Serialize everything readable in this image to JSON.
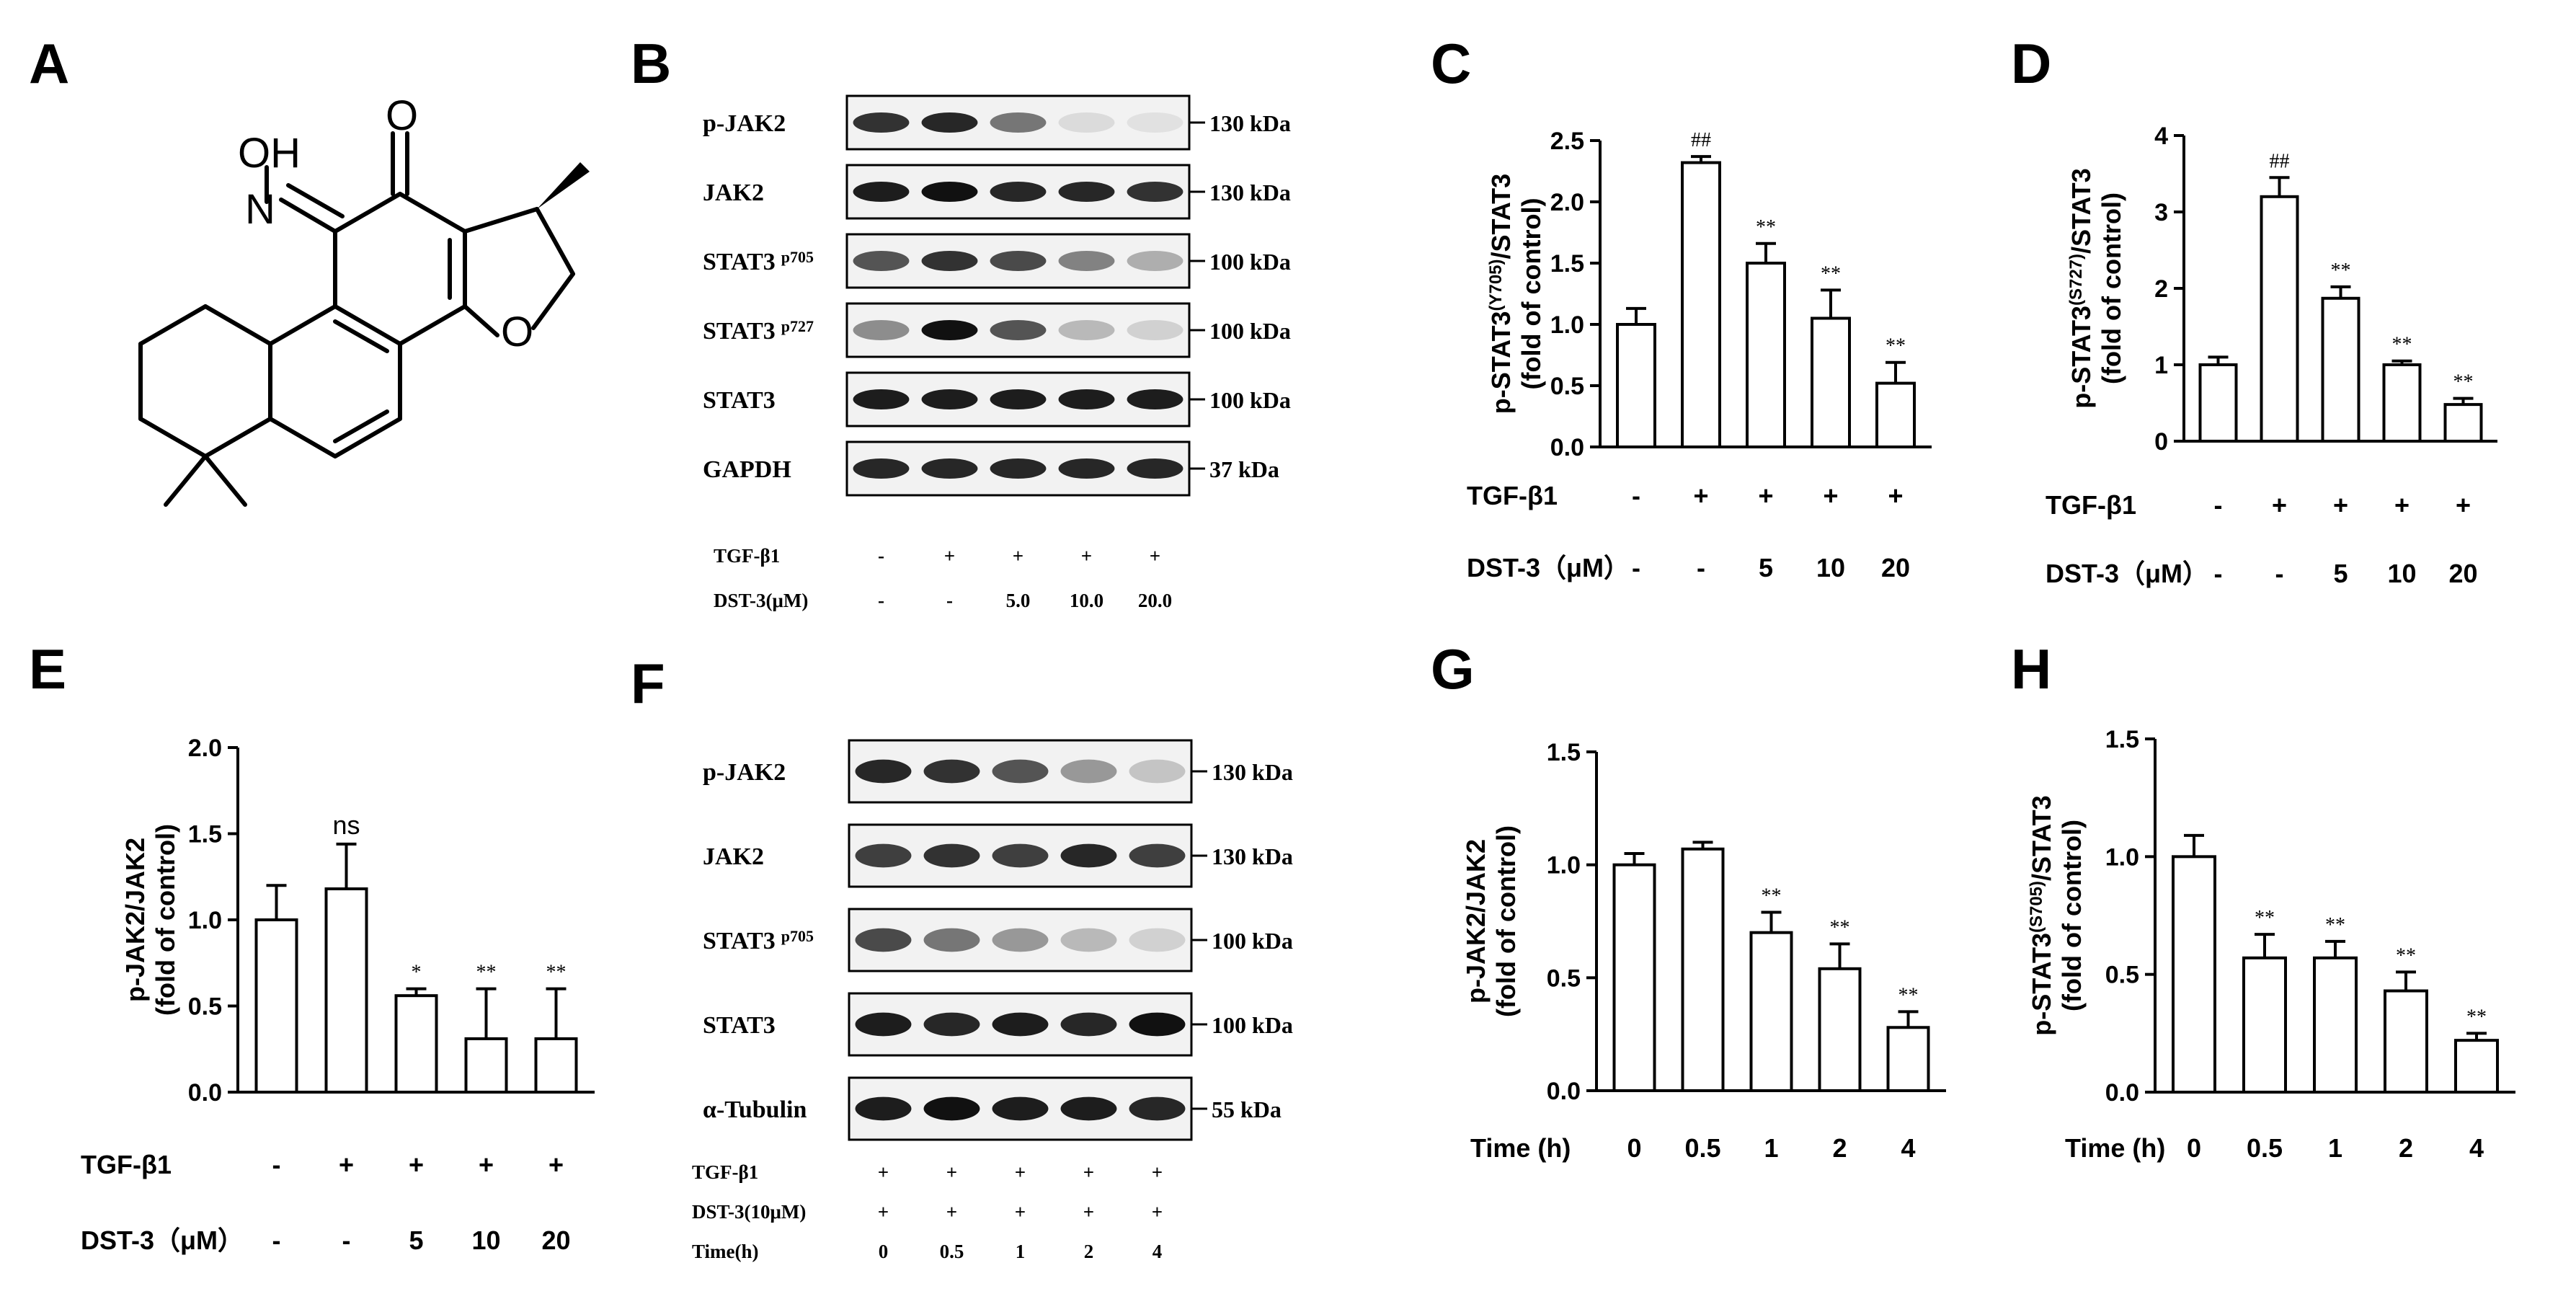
{
  "panel_letters": [
    "A",
    "B",
    "C",
    "D",
    "E",
    "F",
    "G",
    "H"
  ],
  "molecule": {
    "atoms": [
      "OH",
      "N",
      "O",
      "O"
    ]
  },
  "blots": [
    {
      "id": "B",
      "rows": [
        {
          "label": "p-JAK2",
          "sup": "",
          "kda": "130 kDa",
          "intensity": [
            0.85,
            0.9,
            0.55,
            0.1,
            0.07
          ]
        },
        {
          "label": "JAK2",
          "sup": "",
          "kda": "130 kDa",
          "intensity": [
            0.95,
            1.0,
            0.9,
            0.9,
            0.85
          ]
        },
        {
          "label": "STAT3",
          "sup": "p705",
          "kda": "100 kDa",
          "intensity": [
            0.7,
            0.85,
            0.75,
            0.5,
            0.3
          ]
        },
        {
          "label": "STAT3",
          "sup": "p727",
          "kda": "100 kDa",
          "intensity": [
            0.45,
            1.0,
            0.7,
            0.25,
            0.15
          ]
        },
        {
          "label": "STAT3",
          "sup": "",
          "kda": "100 kDa",
          "intensity": [
            0.95,
            0.95,
            0.95,
            0.95,
            0.95
          ]
        },
        {
          "label": "GAPDH",
          "sup": "",
          "kda": "37 kDa",
          "intensity": [
            0.9,
            0.9,
            0.9,
            0.9,
            0.9
          ]
        }
      ],
      "conditions": [
        {
          "label": "TGF-β1",
          "values": [
            "-",
            "+",
            "+",
            "+",
            "+"
          ]
        },
        {
          "label": "DST-3(μM)",
          "values": [
            "-",
            "-",
            "5.0",
            "10.0",
            "20.0"
          ]
        }
      ]
    },
    {
      "id": "F",
      "rows": [
        {
          "label": "p-JAK2",
          "sup": "",
          "kda": "130 kDa",
          "intensity": [
            0.9,
            0.85,
            0.7,
            0.4,
            0.2
          ]
        },
        {
          "label": "JAK2",
          "sup": "",
          "kda": "130 kDa",
          "intensity": [
            0.8,
            0.85,
            0.8,
            0.9,
            0.8
          ]
        },
        {
          "label": "STAT3",
          "sup": "p705",
          "kda": "100 kDa",
          "intensity": [
            0.75,
            0.55,
            0.4,
            0.25,
            0.15
          ]
        },
        {
          "label": "STAT3",
          "sup": "",
          "kda": "100 kDa",
          "intensity": [
            0.95,
            0.9,
            0.95,
            0.9,
            1.0
          ]
        },
        {
          "label": "α-Tubulin",
          "sup": "",
          "kda": "55 kDa",
          "intensity": [
            0.95,
            1.0,
            0.95,
            0.95,
            0.9
          ]
        }
      ],
      "conditions": [
        {
          "label": "TGF-β1",
          "values": [
            "+",
            "+",
            "+",
            "+",
            "+"
          ]
        },
        {
          "label": "DST-3(10μM)",
          "values": [
            "+",
            "+",
            "+",
            "+",
            "+"
          ]
        },
        {
          "label": "Time(h)",
          "values": [
            "0",
            "0.5",
            "1",
            "2",
            "4"
          ]
        }
      ]
    }
  ],
  "chart_data": [
    {
      "id": "C",
      "type": "bar",
      "ylabel": [
        "p-STAT3",
        "(Y705)",
        "/STAT3",
        "(fold of control)"
      ],
      "ylim": [
        0,
        2.5
      ],
      "yticks": [
        "0.0",
        "0.5",
        "1.0",
        "1.5",
        "2.0",
        "2.5"
      ],
      "values": [
        1.0,
        2.32,
        1.5,
        1.05,
        0.52
      ],
      "errors": [
        0.13,
        0.05,
        0.16,
        0.23,
        0.17
      ],
      "annotations": [
        "",
        "##",
        "**",
        "**",
        "**"
      ],
      "conditions": [
        {
          "label": "TGF-β1",
          "values": [
            "-",
            "+",
            "+",
            "+",
            "+"
          ]
        },
        {
          "label": "DST-3（μM）",
          "values": [
            "-",
            "-",
            "5",
            "10",
            "20"
          ]
        }
      ]
    },
    {
      "id": "D",
      "type": "bar",
      "ylabel": [
        "p-STAT3",
        "(S727)",
        "/STAT3",
        "(fold of control)"
      ],
      "ylim": [
        0,
        4
      ],
      "yticks": [
        "0",
        "1",
        "2",
        "3",
        "4"
      ],
      "values": [
        1.0,
        3.2,
        1.87,
        1.0,
        0.48
      ],
      "errors": [
        0.1,
        0.25,
        0.15,
        0.05,
        0.08
      ],
      "annotations": [
        "",
        "##",
        "**",
        "**",
        "**"
      ],
      "conditions": [
        {
          "label": "TGF-β1",
          "values": [
            "-",
            "+",
            "+",
            "+",
            "+"
          ]
        },
        {
          "label": "DST-3（μM）",
          "values": [
            "-",
            "-",
            "5",
            "10",
            "20"
          ]
        }
      ]
    },
    {
      "id": "E",
      "type": "bar",
      "ylabel": [
        "p-JAK2/JAK2",
        "",
        "",
        "(fold of control)"
      ],
      "ylim": [
        0,
        2.0
      ],
      "yticks": [
        "0.0",
        "0.5",
        "1.0",
        "1.5",
        "2.0"
      ],
      "values": [
        1.0,
        1.18,
        0.56,
        0.31,
        0.31
      ],
      "errors": [
        0.2,
        0.26,
        0.04,
        0.29,
        0.29
      ],
      "annotations": [
        "",
        "ns",
        "*",
        "**",
        "**"
      ],
      "conditions": [
        {
          "label": "TGF-β1",
          "values": [
            "-",
            "+",
            "+",
            "+",
            "+"
          ]
        },
        {
          "label": "DST-3（μM）",
          "values": [
            "-",
            "-",
            "5",
            "10",
            "20"
          ]
        }
      ]
    },
    {
      "id": "G",
      "type": "bar",
      "ylabel": [
        "p-JAK2/JAK2",
        "",
        "",
        "(fold of control)"
      ],
      "ylim": [
        0,
        1.5
      ],
      "yticks": [
        "0.0",
        "0.5",
        "1.0",
        "1.5"
      ],
      "values": [
        1.0,
        1.07,
        0.7,
        0.54,
        0.28
      ],
      "errors": [
        0.05,
        0.03,
        0.09,
        0.11,
        0.07
      ],
      "annotations": [
        "",
        "",
        "**",
        "**",
        "**"
      ],
      "conditions": [
        {
          "label": "Time (h)",
          "values": [
            "0",
            "0.5",
            "1",
            "2",
            "4"
          ]
        }
      ]
    },
    {
      "id": "H",
      "type": "bar",
      "ylabel": [
        "p-STAT3",
        "(S705)",
        "/STAT3",
        "(fold of control)"
      ],
      "ylim": [
        0,
        1.5
      ],
      "yticks": [
        "0.0",
        "0.5",
        "1.0",
        "1.5"
      ],
      "values": [
        1.0,
        0.57,
        0.57,
        0.43,
        0.22
      ],
      "errors": [
        0.09,
        0.1,
        0.07,
        0.08,
        0.03
      ],
      "annotations": [
        "",
        "**",
        "**",
        "**",
        "**"
      ],
      "conditions": [
        {
          "label": "Time (h)",
          "values": [
            "0",
            "0.5",
            "1",
            "2",
            "4"
          ]
        }
      ]
    }
  ]
}
